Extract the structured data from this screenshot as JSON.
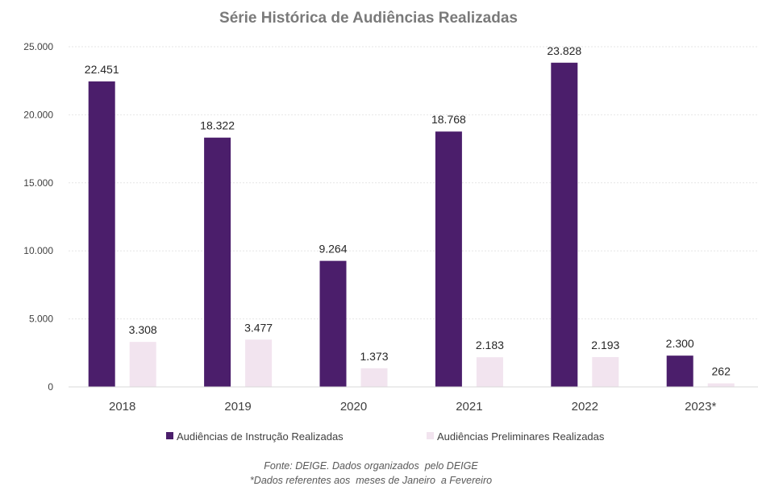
{
  "chart_data": {
    "type": "bar",
    "title": "Série Histórica de Audiências Realizadas",
    "categories": [
      "2018",
      "2019",
      "2020",
      "2021",
      "2022",
      "2023*"
    ],
    "series": [
      {
        "name": "Audiências de Instrução Realizadas",
        "color": "#4b1e6b",
        "values": [
          22451,
          18322,
          9264,
          18768,
          23828,
          2300
        ],
        "labels": [
          "22.451",
          "18.322",
          "9.264",
          "18.768",
          "23.828",
          "2.300"
        ]
      },
      {
        "name": "Audiências Preliminares Realizadas",
        "color": "#f2e4ef",
        "values": [
          3308,
          3477,
          1373,
          2183,
          2193,
          262
        ],
        "labels": [
          "3.308",
          "3.477",
          "1.373",
          "2.183",
          "2.193",
          "262"
        ]
      }
    ],
    "ylim": [
      0,
      25000
    ],
    "yticks": [
      0,
      5000,
      10000,
      15000,
      20000,
      25000
    ],
    "ytick_labels": [
      "0",
      "5.000",
      "10.000",
      "15.000",
      "20.000",
      "25.000"
    ],
    "xlabel": "",
    "ylabel": "",
    "grid": true,
    "legend": "bottom",
    "footnotes": [
      "Fonte: DEIGE. Dados organizados  pelo DEIGE",
      "*Dados referentes aos  meses de Janeiro  a Fevereiro"
    ]
  }
}
